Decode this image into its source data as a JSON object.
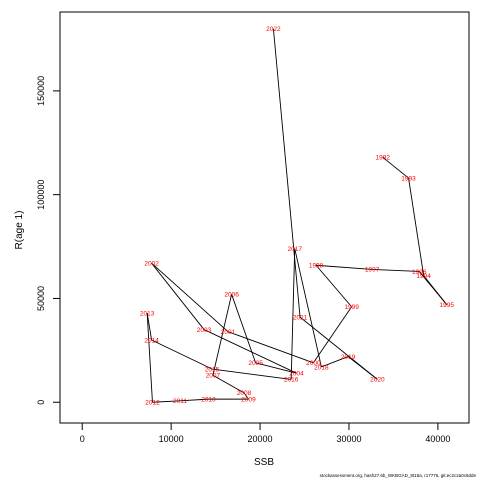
{
  "chart_data": {
    "type": "line",
    "title": "",
    "xlabel": "SSB",
    "ylabel": "R(age 1)",
    "xlim": [
      -2500,
      43500
    ],
    "ylim": [
      -10000,
      188000
    ],
    "xticks": [
      0,
      10000,
      20000,
      30000,
      40000
    ],
    "yticks": [
      0,
      50000,
      100000,
      150000
    ],
    "grid": false,
    "label_color": "#ff0000",
    "line_color": "#000000",
    "points": [
      {
        "year": "1992",
        "x": 33800,
        "y": 118000
      },
      {
        "year": "1993",
        "x": 36700,
        "y": 108000
      },
      {
        "year": "1994",
        "x": 38400,
        "y": 61000
      },
      {
        "year": "1995",
        "x": 41000,
        "y": 47000
      },
      {
        "year": "1996",
        "x": 37900,
        "y": 63000
      },
      {
        "year": "1997",
        "x": 32600,
        "y": 64000
      },
      {
        "year": "1998",
        "x": 26300,
        "y": 66000
      },
      {
        "year": "1999",
        "x": 30300,
        "y": 46000
      },
      {
        "year": "2000",
        "x": 26000,
        "y": 19000
      },
      {
        "year": "2001",
        "x": 16400,
        "y": 34000
      },
      {
        "year": "2002",
        "x": 7800,
        "y": 67000
      },
      {
        "year": "2003",
        "x": 13700,
        "y": 35000
      },
      {
        "year": "2004",
        "x": 24100,
        "y": 14000
      },
      {
        "year": "2005",
        "x": 19500,
        "y": 19000
      },
      {
        "year": "2006",
        "x": 16800,
        "y": 52000
      },
      {
        "year": "2007",
        "x": 14700,
        "y": 13000
      },
      {
        "year": "2008",
        "x": 18200,
        "y": 4500
      },
      {
        "year": "2009",
        "x": 18700,
        "y": 1500
      },
      {
        "year": "2010",
        "x": 14200,
        "y": 1500
      },
      {
        "year": "2011",
        "x": 11000,
        "y": 700
      },
      {
        "year": "2012",
        "x": 7900,
        "y": 0
      },
      {
        "year": "2013",
        "x": 7300,
        "y": 43000
      },
      {
        "year": "2014",
        "x": 7800,
        "y": 30000
      },
      {
        "year": "2015",
        "x": 14600,
        "y": 16000
      },
      {
        "year": "2016",
        "x": 23500,
        "y": 11000
      },
      {
        "year": "2017",
        "x": 23900,
        "y": 74000
      },
      {
        "year": "2018",
        "x": 26900,
        "y": 17000
      },
      {
        "year": "2019",
        "x": 29900,
        "y": 22000
      },
      {
        "year": "2020",
        "x": 33200,
        "y": 11000
      },
      {
        "year": "2021",
        "x": 24500,
        "y": 41000
      },
      {
        "year": "2022",
        "x": 21500,
        "y": 180000
      }
    ]
  },
  "footer_text": "stockassessment.org, hash27.6b_WKBGAD_8t15a, r17776, git:ec2c2a0c8dde"
}
